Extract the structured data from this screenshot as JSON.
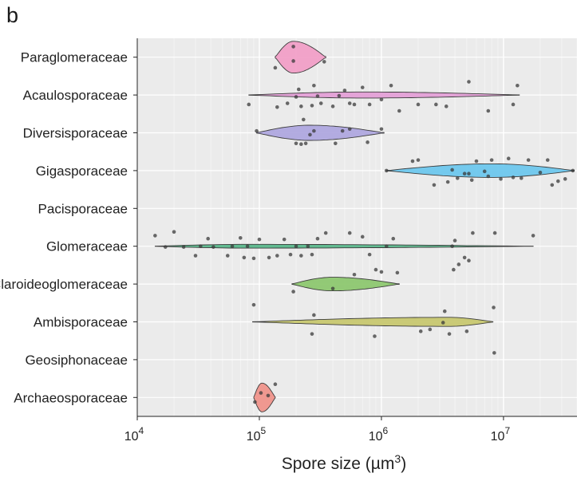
{
  "panel_label": "b",
  "chart_data": {
    "type": "violin",
    "title": "",
    "xlabel": "Spore size (µm3)",
    "xlabel_base": "Spore size (µm",
    "xlabel_sup": "3",
    "xlabel_tail": ")",
    "ylabel": "",
    "x_scale": "log10",
    "xlim": [
      10000,
      40000000
    ],
    "x_ticks": [
      {
        "value": 10000,
        "base": "10",
        "exp": "4"
      },
      {
        "value": 100000,
        "base": "10",
        "exp": "5"
      },
      {
        "value": 1000000,
        "base": "10",
        "exp": "6"
      },
      {
        "value": 10000000,
        "base": "10",
        "exp": "7"
      }
    ],
    "grid": true,
    "background": "#ebebeb",
    "legend": "none",
    "categories": [
      "Paraglomeraceae",
      "Acaulosporaceae",
      "Diversisporaceae",
      "Gigasporaceae",
      "Pacisporaceae",
      "Glomeraceae",
      "Claroideoglomeraceae",
      "Ambisporaceae",
      "Geosiphonaceae",
      "Archaeosporaceae"
    ],
    "series": [
      {
        "name": "Paraglomeraceae",
        "color": "#f2a0c8",
        "violin": {
          "min": 135000,
          "max": 350000,
          "peak": 190000,
          "max_halfwidth": 0.42
        },
        "points": [
          [
            135000,
            0.28
          ],
          [
            190000,
            0.1
          ],
          [
            340000,
            0.12
          ],
          [
            190000,
            -0.28
          ]
        ]
      },
      {
        "name": "Acaulosporaceae",
        "color": "#e3a0d6",
        "violin": {
          "min": 82000,
          "max": 13500000,
          "peak": 700000,
          "max_halfwidth": 0.08
        },
        "points": [
          [
            82000,
            0.25
          ],
          [
            140000,
            0.32
          ],
          [
            170000,
            0.22
          ],
          [
            200000,
            0.05
          ],
          [
            210000,
            -0.15
          ],
          [
            220000,
            0.3
          ],
          [
            270000,
            0.28
          ],
          [
            280000,
            -0.25
          ],
          [
            300000,
            0.03
          ],
          [
            320000,
            0.22
          ],
          [
            400000,
            0.3
          ],
          [
            450000,
            0.02
          ],
          [
            500000,
            -0.12
          ],
          [
            550000,
            0.22
          ],
          [
            600000,
            0.25
          ],
          [
            700000,
            -0.2
          ],
          [
            800000,
            0.25
          ],
          [
            1000000,
            0.12
          ],
          [
            1200000,
            -0.25
          ],
          [
            1400000,
            0.42
          ],
          [
            2000000,
            0.25
          ],
          [
            2800000,
            0.25
          ],
          [
            3400000,
            0.3
          ],
          [
            5200000,
            -0.35
          ],
          [
            7500000,
            0.42
          ],
          [
            12000000,
            0.25
          ],
          [
            13000000,
            -0.25
          ]
        ]
      },
      {
        "name": "Diversisporaceae",
        "color": "#b0a8e0",
        "violin": {
          "min": 95000,
          "max": 1050000,
          "peak": 260000,
          "max_halfwidth": 0.2
        },
        "points": [
          [
            95000,
            -0.05
          ],
          [
            200000,
            0.28
          ],
          [
            220000,
            0.3
          ],
          [
            240000,
            0.28
          ],
          [
            260000,
            0.05
          ],
          [
            280000,
            -0.05
          ],
          [
            230000,
            -0.35
          ],
          [
            420000,
            0.28
          ],
          [
            480000,
            -0.05
          ],
          [
            550000,
            -0.1
          ],
          [
            770000,
            0.25
          ],
          [
            1000000,
            -0.1
          ]
        ]
      },
      {
        "name": "Gigasporaceae",
        "color": "#6ec8ee",
        "violin": {
          "min": 1100000,
          "max": 38000000,
          "peak": 8000000,
          "max_halfwidth": 0.18
        },
        "points": [
          [
            1100000,
            0.0
          ],
          [
            1800000,
            -0.25
          ],
          [
            2000000,
            -0.28
          ],
          [
            2700000,
            0.38
          ],
          [
            3500000,
            0.3
          ],
          [
            3800000,
            -0.02
          ],
          [
            4200000,
            0.2
          ],
          [
            4800000,
            0.08
          ],
          [
            5200000,
            0.08
          ],
          [
            5500000,
            0.25
          ],
          [
            6000000,
            -0.25
          ],
          [
            7000000,
            0.02
          ],
          [
            7500000,
            0.15
          ],
          [
            8000000,
            -0.28
          ],
          [
            9500000,
            0.22
          ],
          [
            11000000,
            -0.32
          ],
          [
            12000000,
            0.18
          ],
          [
            14000000,
            0.2
          ],
          [
            16000000,
            -0.28
          ],
          [
            20000000,
            0.05
          ],
          [
            23000000,
            -0.28
          ],
          [
            25000000,
            0.38
          ],
          [
            28000000,
            0.28
          ],
          [
            32000000,
            0.22
          ],
          [
            37000000,
            0.0
          ]
        ]
      },
      {
        "name": "Pacisporaceae",
        "color": "#a0d0e0",
        "violin": null,
        "points": []
      },
      {
        "name": "Glomeraceae",
        "color": "#5ab88c",
        "violin": {
          "min": 14000,
          "max": 17500000,
          "peak": 80000,
          "max_halfwidth": 0.05
        },
        "points": [
          [
            14000,
            -0.28
          ],
          [
            17000,
            0.02
          ],
          [
            20000,
            -0.38
          ],
          [
            24000,
            0.02
          ],
          [
            30000,
            0.25
          ],
          [
            33000,
            0.0
          ],
          [
            38000,
            -0.2
          ],
          [
            42000,
            0.02
          ],
          [
            55000,
            0.25
          ],
          [
            60000,
            0.0
          ],
          [
            70000,
            -0.22
          ],
          [
            75000,
            0.3
          ],
          [
            80000,
            0.0
          ],
          [
            90000,
            0.32
          ],
          [
            100000,
            -0.18
          ],
          [
            120000,
            0.3
          ],
          [
            140000,
            0.25
          ],
          [
            160000,
            -0.18
          ],
          [
            180000,
            0.22
          ],
          [
            200000,
            0.0
          ],
          [
            220000,
            0.25
          ],
          [
            250000,
            0.0
          ],
          [
            270000,
            0.22
          ],
          [
            300000,
            -0.2
          ],
          [
            350000,
            -0.35
          ],
          [
            550000,
            -0.35
          ],
          [
            700000,
            -0.25
          ],
          [
            800000,
            0.22
          ],
          [
            1100000,
            0.0
          ],
          [
            1250000,
            -0.2
          ],
          [
            3800000,
            0.0
          ],
          [
            3900000,
            0.62
          ],
          [
            4300000,
            0.48
          ],
          [
            4800000,
            0.3
          ],
          [
            5200000,
            0.38
          ],
          [
            4000000,
            -0.15
          ],
          [
            5600000,
            -0.35
          ],
          [
            8500000,
            -0.35
          ],
          [
            17500000,
            -0.28
          ]
        ]
      },
      {
        "name": "Claroideoglomeraceae",
        "color": "#8ec870",
        "violin": {
          "min": 185000,
          "max": 1400000,
          "peak": 400000,
          "max_halfwidth": 0.18
        },
        "points": [
          [
            190000,
            0.2
          ],
          [
            400000,
            0.12
          ],
          [
            600000,
            -0.25
          ],
          [
            900000,
            -0.38
          ],
          [
            1000000,
            -0.32
          ],
          [
            1350000,
            -0.3
          ]
        ]
      },
      {
        "name": "Ambisporaceae",
        "color": "#c8c870",
        "violin": {
          "min": 88000,
          "max": 8200000,
          "peak": 3500000,
          "max_halfwidth": 0.12
        },
        "points": [
          [
            90000,
            -0.45
          ],
          [
            270000,
            0.32
          ],
          [
            280000,
            -0.18
          ],
          [
            880000,
            0.38
          ],
          [
            2100000,
            0.25
          ],
          [
            2500000,
            0.2
          ],
          [
            3200000,
            0.02
          ],
          [
            3300000,
            -0.28
          ],
          [
            3600000,
            0.32
          ],
          [
            5000000,
            0.25
          ],
          [
            8300000,
            -0.38
          ]
        ]
      },
      {
        "name": "Geosiphonaceae",
        "color": "#a0a0a0",
        "violin": null,
        "points": [
          [
            8400000,
            -0.18
          ]
        ]
      },
      {
        "name": "Archaeosporaceae",
        "color": "#f0948c",
        "violin": {
          "min": 90000,
          "max": 135000,
          "peak": 105000,
          "max_halfwidth": 0.38
        },
        "points": [
          [
            92000,
            0.12
          ],
          [
            103000,
            -0.12
          ],
          [
            135000,
            -0.35
          ],
          [
            118000,
            -0.05
          ]
        ]
      }
    ]
  }
}
